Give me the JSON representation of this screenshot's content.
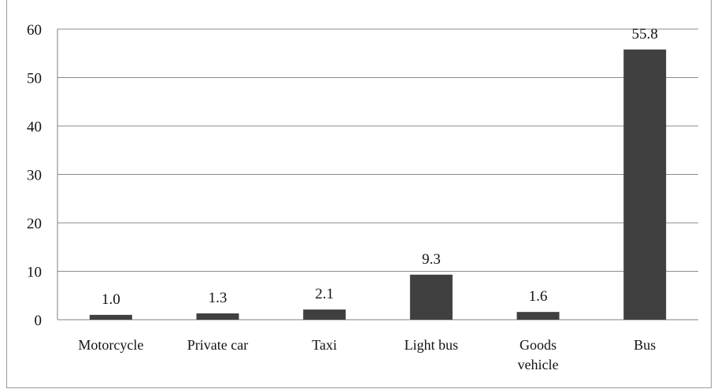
{
  "chart_data": {
    "type": "bar",
    "categories": [
      "Motorcycle",
      "Private car",
      "Taxi",
      "Light bus",
      "Goods vehicle",
      "Bus"
    ],
    "category_lines": [
      [
        "Motorcycle"
      ],
      [
        "Private car"
      ],
      [
        "Taxi"
      ],
      [
        "Light bus"
      ],
      [
        "Goods",
        "vehicle"
      ],
      [
        "Bus"
      ]
    ],
    "values": [
      1.0,
      1.3,
      2.1,
      9.3,
      1.6,
      55.8
    ],
    "value_labels": [
      "1.0",
      "1.3",
      "2.1",
      "9.3",
      "1.6",
      "55.8"
    ],
    "ylim": [
      0,
      60
    ],
    "yticks": [
      0,
      10,
      20,
      30,
      40,
      50,
      60
    ],
    "ytick_labels": [
      "0",
      "10",
      "20",
      "30",
      "40",
      "50",
      "60"
    ],
    "title": "",
    "xlabel": "",
    "ylabel": "",
    "grid": true,
    "legend": "none",
    "colors": {
      "bar": "#404040",
      "grid": "#8c8c8c",
      "axis": "#7f7f7f",
      "text": "#111111"
    }
  }
}
